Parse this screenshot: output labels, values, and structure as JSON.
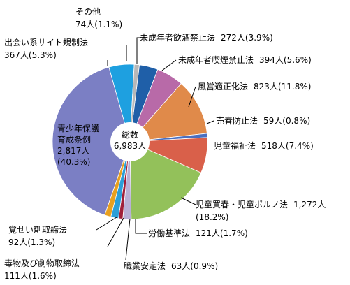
{
  "chart_data": {
    "type": "pie",
    "center_label": {
      "line1": "総数",
      "line2": "6,983人"
    },
    "total": 6983,
    "slices": [
      {
        "name": "未成年者飲酒禁止法",
        "value": 272,
        "value_label": "272人",
        "pct_label": "(3.9%)",
        "color": "#1f5fa8"
      },
      {
        "name": "未成年者喫煙禁止法",
        "value": 394,
        "value_label": "394人",
        "pct_label": "(5.6%)",
        "color": "#b86aa8"
      },
      {
        "name": "風営適正化法",
        "value": 823,
        "value_label": "823人",
        "pct_label": "(11.8%)",
        "color": "#e08a4a"
      },
      {
        "name": "売春防止法",
        "value": 59,
        "value_label": "59人",
        "pct_label": "(0.8%)",
        "color": "#4a6fc0"
      },
      {
        "name": "児童福祉法",
        "value": 518,
        "value_label": "518人",
        "pct_label": "(7.4%)",
        "color": "#d9604a"
      },
      {
        "name": "児童買春・児童ポルノ法",
        "value": 1272,
        "value_label": "1,272人",
        "pct_label": "(18.2%)",
        "color": "#93c15a"
      },
      {
        "name": "労働基準法",
        "value": 121,
        "value_label": "121人",
        "pct_label": "(1.7%)",
        "color": "#b9b0d6"
      },
      {
        "name": "職業安定法",
        "value": 63,
        "value_label": "63人",
        "pct_label": "(0.9%)",
        "color": "#a0203a"
      },
      {
        "name": "毒物及び劇物取締法",
        "value": 111,
        "value_label": "111人",
        "pct_label": "(1.6%)",
        "color": "#2b9fd8"
      },
      {
        "name": "覚せい剤取締法",
        "value": 92,
        "value_label": "92人",
        "pct_label": "(1.3%)",
        "color": "#e8a020"
      },
      {
        "name": "青少年保護育成条例",
        "name_lines": [
          "青少年保護",
          "育成条例"
        ],
        "value": 2817,
        "value_label": "2,817人",
        "pct_label": "(40.3%)",
        "color": "#7b7fc4"
      },
      {
        "name": "出会い系サイト規制法",
        "value": 367,
        "value_label": "367人",
        "pct_label": "(5.3%)",
        "color": "#1ea0e0"
      },
      {
        "name": "その他",
        "value": 74,
        "value_label": "74人",
        "pct_label": "(1.1%)",
        "color": "#b8b8b8"
      }
    ]
  }
}
